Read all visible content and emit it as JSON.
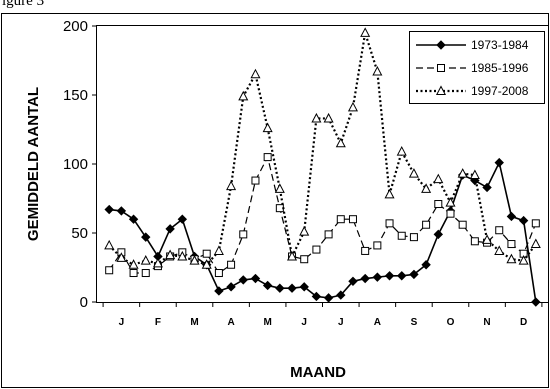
{
  "page": {
    "top_text": "igure 3"
  },
  "chart_data": {
    "type": "line",
    "xlabel": "MAAND",
    "ylabel": "GEMIDDELD AANTAL",
    "ylim": [
      0,
      200
    ],
    "yticks": [
      0,
      50,
      100,
      150,
      200
    ],
    "month_labels": [
      "J",
      "F",
      "M",
      "A",
      "M",
      "J",
      "J",
      "A",
      "S",
      "O",
      "N",
      "D"
    ],
    "x": [
      1,
      2,
      3,
      4,
      5,
      6,
      7,
      8,
      9,
      10,
      11,
      12,
      13,
      14,
      15,
      16,
      17,
      18,
      19,
      20,
      21,
      22,
      23,
      24,
      25,
      26,
      27,
      28,
      29,
      30,
      31,
      32,
      33,
      34,
      35,
      36
    ],
    "legend_position": "top-right",
    "grid": false,
    "series": [
      {
        "name": "1973-1984",
        "style": "solid",
        "marker": "filled-diamond",
        "values": [
          67,
          66,
          60,
          47,
          33,
          53,
          60,
          33,
          27,
          8,
          11,
          16,
          17,
          12,
          10,
          10,
          11,
          4,
          3,
          5,
          15,
          17,
          18,
          19,
          19,
          20,
          27,
          49,
          66,
          92,
          88,
          83,
          101,
          62,
          59,
          0
        ]
      },
      {
        "name": "1985-1996",
        "style": "dashed",
        "marker": "open-square",
        "values": [
          23,
          36,
          21,
          21,
          26,
          33,
          36,
          31,
          35,
          21,
          27,
          49,
          88,
          105,
          68,
          33,
          31,
          38,
          49,
          60,
          60,
          37,
          41,
          57,
          48,
          47,
          56,
          71,
          64,
          56,
          44,
          43,
          52,
          42,
          35,
          57
        ]
      },
      {
        "name": "1997-2008",
        "style": "dotted",
        "marker": "open-triangle",
        "values": [
          41,
          32,
          27,
          30,
          28,
          34,
          33,
          30,
          27,
          37,
          84,
          149,
          165,
          126,
          82,
          33,
          51,
          133,
          133,
          115,
          141,
          195,
          167,
          78,
          109,
          93,
          82,
          89,
          72,
          93,
          92,
          45,
          37,
          31,
          30,
          42
        ]
      }
    ]
  }
}
